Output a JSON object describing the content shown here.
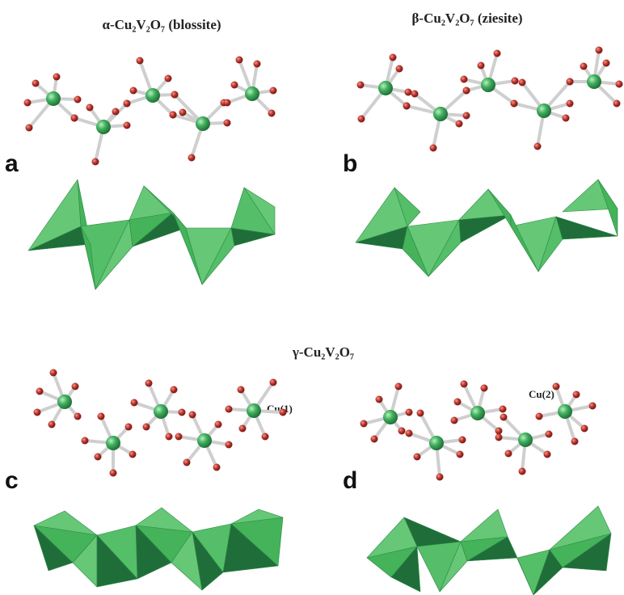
{
  "titles": {
    "alpha": {
      "greek": "α",
      "formula": "-Cu₂V₂O₇",
      "name": "(blossite)"
    },
    "beta": {
      "greek": "β",
      "formula": "-Cu₂V₂O₇",
      "name": "(ziesite)"
    },
    "gamma": {
      "greek": "γ",
      "formula": "-Cu₂V₂O₇"
    }
  },
  "panels": {
    "a": {
      "letter": "a"
    },
    "b": {
      "letter": "b"
    },
    "c": {
      "letter": "c",
      "site_label": "Cu(1)"
    },
    "d": {
      "letter": "d",
      "site_label": "Cu(2)"
    }
  },
  "colors": {
    "copper_atom": "#3fae5c",
    "oxygen_atom": "#b8322a",
    "bond": "#cfcfcf",
    "polyhedron_light": "#5cc46e",
    "polyhedron_mid": "#3aa850",
    "polyhedron_dark": "#1f6e3a"
  }
}
